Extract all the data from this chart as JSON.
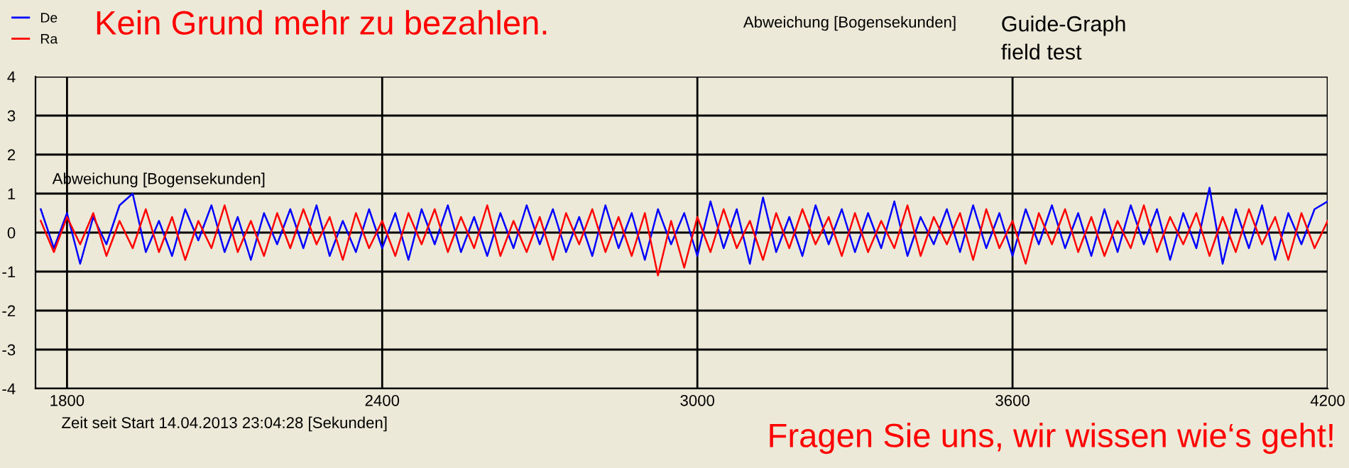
{
  "chart_data": {
    "type": "line",
    "title": "Kein Grund mehr zu bezahlen.",
    "xlabel": "Zeit seit Start 14.04.2013 23:04:28 [Sekunden]",
    "ylabel": "Abweichung [Bogensekunden]",
    "annotations": [
      "Abweichung [Bogensekunden]",
      "Guide-Graph",
      "field test",
      "Fragen Sie uns, wir wissen wie‘s geht!"
    ],
    "x": [
      1750,
      1775,
      1800,
      1825,
      1850,
      1875,
      1900,
      1925,
      1950,
      1975,
      2000,
      2025,
      2050,
      2075,
      2100,
      2125,
      2150,
      2175,
      2200,
      2225,
      2250,
      2275,
      2300,
      2325,
      2350,
      2375,
      2400,
      2425,
      2450,
      2475,
      2500,
      2525,
      2550,
      2575,
      2600,
      2625,
      2650,
      2675,
      2700,
      2725,
      2750,
      2775,
      2800,
      2825,
      2850,
      2875,
      2900,
      2925,
      2950,
      2975,
      3000,
      3025,
      3050,
      3075,
      3100,
      3125,
      3150,
      3175,
      3200,
      3225,
      3250,
      3275,
      3300,
      3325,
      3350,
      3375,
      3400,
      3425,
      3450,
      3475,
      3500,
      3525,
      3550,
      3575,
      3600,
      3625,
      3650,
      3675,
      3700,
      3725,
      3750,
      3775,
      3800,
      3825,
      3850,
      3875,
      3900,
      3925,
      3950,
      3975,
      4000,
      4025,
      4050,
      4075,
      4100,
      4125,
      4150,
      4175,
      4200
    ],
    "series": [
      {
        "name": "De",
        "color": "#0000ff",
        "values": [
          0.6,
          -0.4,
          0.5,
          -0.8,
          0.4,
          -0.3,
          0.7,
          1.0,
          -0.5,
          0.3,
          -0.6,
          0.6,
          -0.2,
          0.7,
          -0.5,
          0.4,
          -0.7,
          0.5,
          -0.3,
          0.6,
          -0.4,
          0.7,
          -0.6,
          0.3,
          -0.5,
          0.6,
          -0.4,
          0.5,
          -0.7,
          0.6,
          -0.3,
          0.7,
          -0.5,
          0.4,
          -0.6,
          0.5,
          -0.4,
          0.7,
          -0.3,
          0.6,
          -0.5,
          0.4,
          -0.6,
          0.7,
          -0.4,
          0.5,
          -0.7,
          0.6,
          -0.3,
          0.5,
          -0.6,
          0.8,
          -0.4,
          0.6,
          -0.8,
          0.9,
          -0.5,
          0.4,
          -0.6,
          0.7,
          -0.3,
          0.6,
          -0.5,
          0.5,
          -0.4,
          0.8,
          -0.6,
          0.4,
          -0.3,
          0.6,
          -0.5,
          0.7,
          -0.4,
          0.5,
          -0.6,
          0.6,
          -0.3,
          0.7,
          -0.4,
          0.5,
          -0.6,
          0.6,
          -0.5,
          0.7,
          -0.3,
          0.6,
          -0.7,
          0.5,
          -0.4,
          1.15,
          -0.8,
          0.6,
          -0.4,
          0.7,
          -0.7,
          0.5,
          -0.3,
          0.6,
          0.8
        ]
      },
      {
        "name": "Ra",
        "color": "#ff0000",
        "values": [
          0.3,
          -0.5,
          0.4,
          -0.3,
          0.5,
          -0.6,
          0.3,
          -0.4,
          0.6,
          -0.5,
          0.4,
          -0.7,
          0.3,
          -0.4,
          0.7,
          -0.5,
          0.3,
          -0.6,
          0.5,
          -0.4,
          0.6,
          -0.3,
          0.4,
          -0.7,
          0.5,
          -0.4,
          0.3,
          -0.6,
          0.5,
          -0.3,
          0.6,
          -0.5,
          0.4,
          -0.4,
          0.7,
          -0.6,
          0.3,
          -0.5,
          0.4,
          -0.7,
          0.5,
          -0.3,
          0.6,
          -0.5,
          0.4,
          -0.6,
          0.5,
          -1.1,
          0.3,
          -0.9,
          0.4,
          -0.5,
          0.6,
          -0.4,
          0.3,
          -0.7,
          0.5,
          -0.4,
          0.6,
          -0.3,
          0.4,
          -0.6,
          0.5,
          -0.5,
          0.3,
          -0.4,
          0.7,
          -0.6,
          0.4,
          -0.3,
          0.5,
          -0.7,
          0.6,
          -0.4,
          0.3,
          -0.8,
          0.5,
          -0.3,
          0.6,
          -0.5,
          0.4,
          -0.6,
          0.3,
          -0.4,
          0.7,
          -0.5,
          0.4,
          -0.3,
          0.5,
          -0.6,
          0.4,
          -0.5,
          0.6,
          -0.3,
          0.4,
          -0.7,
          0.5,
          -0.4,
          0.3
        ]
      }
    ],
    "xlim": [
      1740,
      4200
    ],
    "ylim": [
      -4,
      4
    ],
    "xticks": [
      1800,
      2400,
      3000,
      3600,
      4200
    ],
    "yticks": [
      -4,
      -3,
      -2,
      -1,
      0,
      1,
      2,
      3,
      4
    ],
    "grid": true,
    "legend": "top left",
    "marker": "none",
    "line_style": "solid"
  }
}
